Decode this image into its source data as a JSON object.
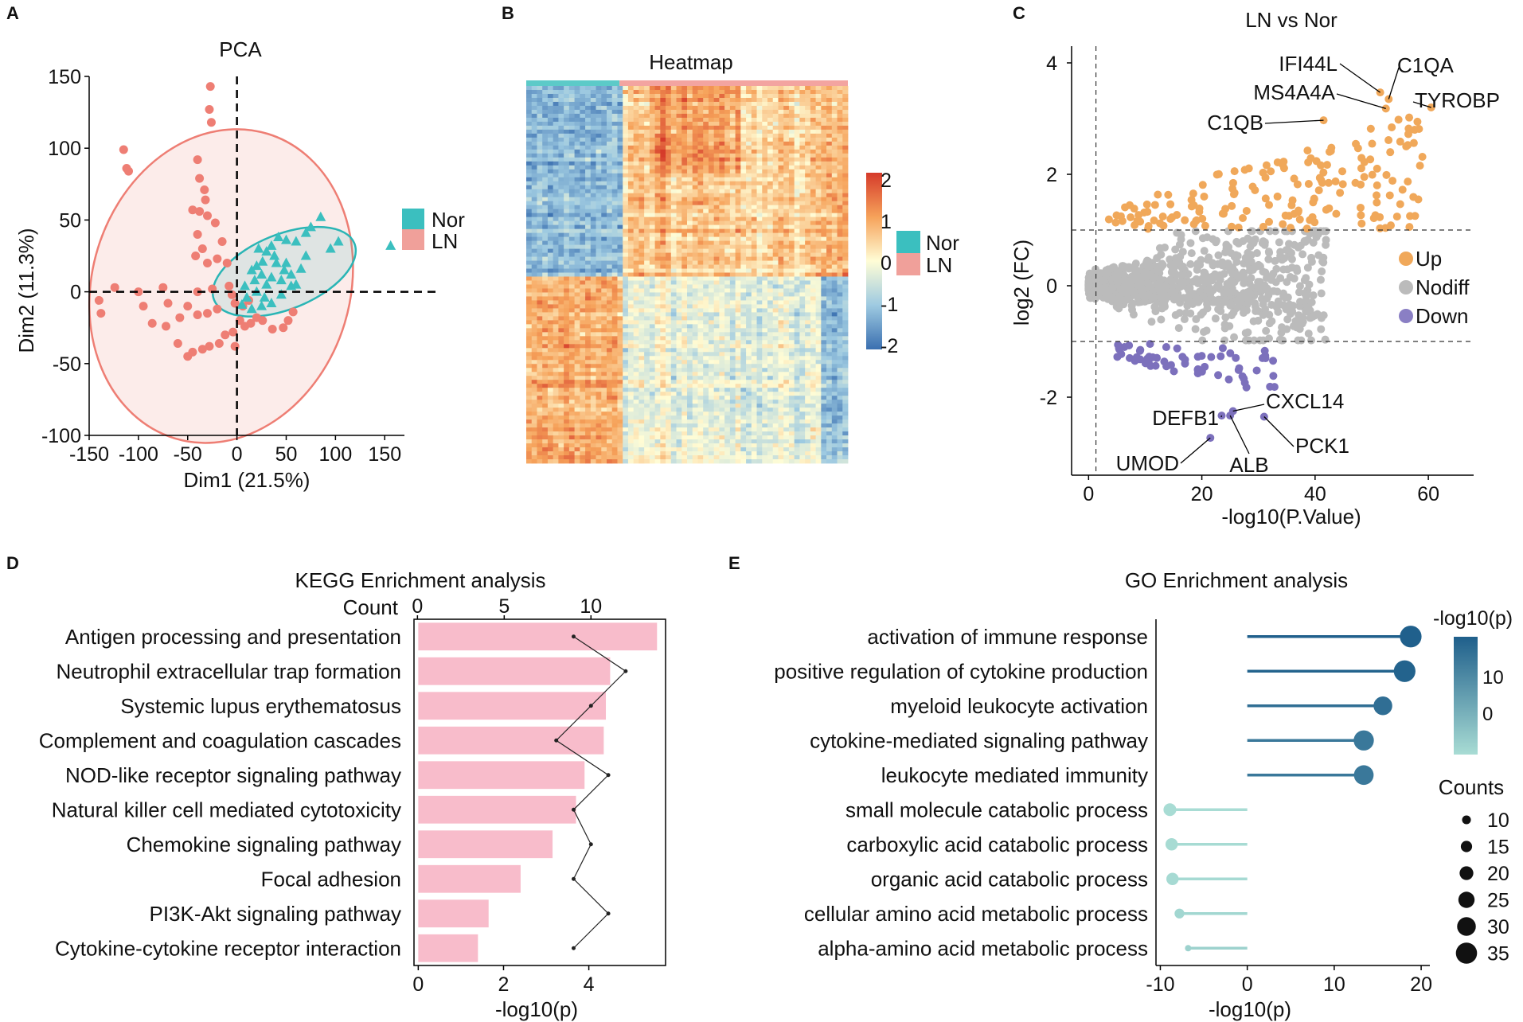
{
  "panel_labels": [
    "A",
    "B",
    "C",
    "D",
    "E"
  ],
  "chart_data": [
    {
      "id": "pca",
      "type": "scatter",
      "title": "PCA",
      "xlabel": "Dim1 (21.5%)",
      "ylabel": "Dim2 (11.3%)",
      "xlim": [
        -150,
        170
      ],
      "ylim": [
        -100,
        150
      ],
      "xticks": [
        -150,
        -100,
        -50,
        0,
        50,
        100,
        150
      ],
      "yticks": [
        -100,
        -50,
        0,
        50,
        100,
        150
      ],
      "legend": [
        {
          "name": "Nor",
          "color": "#3bbfbf"
        },
        {
          "name": "LN",
          "color": "#ee7e74"
        }
      ],
      "series": [
        {
          "name": "LN",
          "color": "#ee7e74",
          "marker": "circle",
          "points": [
            [
              -27,
              143
            ],
            [
              -28,
              127
            ],
            [
              -26,
              118
            ],
            [
              -115,
              99
            ],
            [
              -112,
              86
            ],
            [
              -110,
              84
            ],
            [
              -40,
              92
            ],
            [
              -38,
              79
            ],
            [
              -33,
              71
            ],
            [
              -32,
              64
            ],
            [
              -45,
              57
            ],
            [
              -38,
              56
            ],
            [
              -30,
              53
            ],
            [
              -22,
              48
            ],
            [
              -40,
              40
            ],
            [
              -35,
              30
            ],
            [
              -15,
              35
            ],
            [
              -42,
              25
            ],
            [
              -30,
              20
            ],
            [
              -20,
              23
            ],
            [
              -10,
              20
            ],
            [
              -40,
              0
            ],
            [
              -25,
              2
            ],
            [
              -8,
              4
            ],
            [
              -5,
              -2
            ],
            [
              -2,
              -8
            ],
            [
              -20,
              -12
            ],
            [
              -30,
              -15
            ],
            [
              -40,
              -16
            ],
            [
              -12,
              -30
            ],
            [
              -18,
              -36
            ],
            [
              -28,
              -38
            ],
            [
              -35,
              -40
            ],
            [
              -45,
              -42
            ],
            [
              -50,
              -45
            ],
            [
              -4,
              -28
            ],
            [
              -2,
              -38
            ],
            [
              3,
              -20
            ],
            [
              8,
              -24
            ],
            [
              14,
              -22
            ],
            [
              20,
              -18
            ],
            [
              26,
              -20
            ],
            [
              36,
              -26
            ],
            [
              47,
              -25
            ],
            [
              52,
              -20
            ],
            [
              57,
              -14
            ],
            [
              12,
              -6
            ],
            [
              6,
              -10
            ],
            [
              -75,
              3
            ],
            [
              -100,
              0
            ],
            [
              -124,
              3
            ],
            [
              -140,
              -6
            ],
            [
              -138,
              -15
            ],
            [
              -95,
              -10
            ],
            [
              -86,
              -22
            ],
            [
              -72,
              -24
            ],
            [
              -58,
              -18
            ],
            [
              -50,
              -10
            ],
            [
              -60,
              -36
            ],
            [
              -70,
              -8
            ]
          ]
        },
        {
          "name": "Nor",
          "color": "#3bbfbf",
          "marker": "triangle",
          "points": [
            [
              156,
              32
            ],
            [
              103,
              35
            ],
            [
              95,
              30
            ],
            [
              85,
              52
            ],
            [
              75,
              45
            ],
            [
              70,
              41
            ],
            [
              60,
              35
            ],
            [
              50,
              36
            ],
            [
              42,
              38
            ],
            [
              35,
              32
            ],
            [
              30,
              28
            ],
            [
              26,
              21
            ],
            [
              20,
              18
            ],
            [
              15,
              15
            ],
            [
              25,
              12
            ],
            [
              35,
              10
            ],
            [
              45,
              8
            ],
            [
              55,
              12
            ],
            [
              65,
              16
            ],
            [
              40,
              20
            ],
            [
              30,
              5
            ],
            [
              20,
              0
            ],
            [
              10,
              -4
            ],
            [
              5,
              -9
            ],
            [
              15,
              -12
            ],
            [
              25,
              -10
            ],
            [
              35,
              -8
            ],
            [
              45,
              -2
            ],
            [
              55,
              4
            ],
            [
              50,
              20
            ],
            [
              38,
              25
            ],
            [
              22,
              30
            ],
            [
              18,
              8
            ],
            [
              8,
              4
            ],
            [
              28,
              -4
            ],
            [
              70,
              25
            ],
            [
              60,
              5
            ],
            [
              48,
              15
            ]
          ]
        }
      ],
      "ellipses": [
        {
          "name": "LN",
          "color": "#ee7e74"
        },
        {
          "name": "Nor",
          "color": "#3bbfbf"
        }
      ]
    },
    {
      "id": "heatmap",
      "type": "heatmap",
      "title": "Heatmap",
      "colorbar_ticks": [
        "2",
        "1",
        "0",
        "-1",
        "-2"
      ],
      "colorbar_range": [
        -2,
        2
      ],
      "legend": [
        {
          "name": "Nor",
          "color": "#3bbfbf"
        },
        {
          "name": "LN",
          "color": "#ee7e74"
        }
      ],
      "group_split_fraction": 0.29
    },
    {
      "id": "volcano",
      "type": "scatter",
      "title": "LN vs Nor",
      "xlabel": "-log10(P.Value)",
      "ylabel": "log2 (FC)",
      "xlim": [
        -3,
        68
      ],
      "ylim": [
        -3.4,
        4.3
      ],
      "xticks": [
        0,
        20,
        40,
        60
      ],
      "yticks": [
        -2,
        0,
        2,
        4
      ],
      "thresholds": {
        "vline": 1.3,
        "hlines": [
          1,
          -1
        ]
      },
      "legend": [
        {
          "name": "Up",
          "color": "#f0a85a"
        },
        {
          "name": "Nodiff",
          "color": "#bbbbbb"
        },
        {
          "name": "Down",
          "color": "#8a7fc4"
        }
      ],
      "labeled_genes": [
        {
          "gene": "IFI44L",
          "x": 51.5,
          "y": 3.47
        },
        {
          "gene": "C1QA",
          "x": 53,
          "y": 3.35
        },
        {
          "gene": "MS4A4A",
          "x": 52.5,
          "y": 3.18
        },
        {
          "gene": "TYROBP",
          "x": 60.5,
          "y": 3.2
        },
        {
          "gene": "C1QB",
          "x": 41.5,
          "y": 2.97
        },
        {
          "gene": "CXCL14",
          "x": 25.5,
          "y": -2.25
        },
        {
          "gene": "DEFB1",
          "x": 23.5,
          "y": -2.33
        },
        {
          "gene": "ALB",
          "x": 25,
          "y": -2.33
        },
        {
          "gene": "PCK1",
          "x": 31,
          "y": -2.35
        },
        {
          "gene": "UMOD",
          "x": 21.5,
          "y": -2.73
        }
      ]
    },
    {
      "id": "kegg",
      "type": "bar",
      "title": "KEGG Enrichment analysis",
      "xlabel": "-log10(p)",
      "top_axis_label": "Count",
      "categories": [
        "Antigen processing and presentation",
        "Neutrophil extracellular trap formation",
        "Systemic lupus erythematosus",
        "Complement and coagulation cascades",
        "NOD-like receptor signaling pathway",
        "Natural killer cell mediated cytotoxicity",
        "Chemokine signaling pathway",
        "Focal adhesion",
        "PI3K-Akt signaling pathway",
        "Cytokine-cytokine receptor interaction"
      ],
      "series": [
        {
          "name": "-log10(p)",
          "color": "#f8bccb",
          "values": [
            5.6,
            4.5,
            4.4,
            4.35,
            3.9,
            3.7,
            3.15,
            2.4,
            1.65,
            1.4
          ]
        },
        {
          "name": "Count",
          "color": "#222222",
          "values": [
            9,
            12,
            10,
            8,
            11,
            9,
            10,
            9,
            11,
            9
          ]
        }
      ],
      "xlim": [
        -0.1,
        5.8
      ],
      "xticks": [
        0,
        2,
        4
      ],
      "count_lim": [
        -0.2,
        14.3
      ],
      "count_ticks": [
        0,
        5,
        10
      ]
    },
    {
      "id": "go",
      "type": "lollipop",
      "title": "GO Enrichment analysis",
      "xlabel": "-log10(p)",
      "categories": [
        "activation of immune response",
        "positive regulation of cytokine production",
        "myeloid leukocyte activation",
        "cytokine-mediated signaling pathway",
        "leukocyte mediated immunity",
        "small molecule catabolic process",
        "carboxylic acid catabolic process",
        "organic acid catabolic process",
        "cellular amino acid metabolic process",
        "alpha-amino acid metabolic process"
      ],
      "values": [
        18.8,
        18.1,
        15.6,
        13.4,
        13.4,
        -8.9,
        -8.7,
        -8.6,
        -7.8,
        -6.8
      ],
      "counts": [
        36,
        36,
        30,
        33,
        32,
        18,
        17,
        17,
        12,
        5
      ],
      "xlim": [
        -10.5,
        21
      ],
      "xticks": [
        -10,
        0,
        10,
        20
      ],
      "colorbar_title": "-log10(p)",
      "colorbar_ticks": [
        10,
        0
      ],
      "size_legend_title": "Counts",
      "size_legend": [
        10,
        15,
        20,
        25,
        30,
        35
      ],
      "color_high": "#1f5f8b",
      "color_low": "#a8dcd4"
    }
  ]
}
